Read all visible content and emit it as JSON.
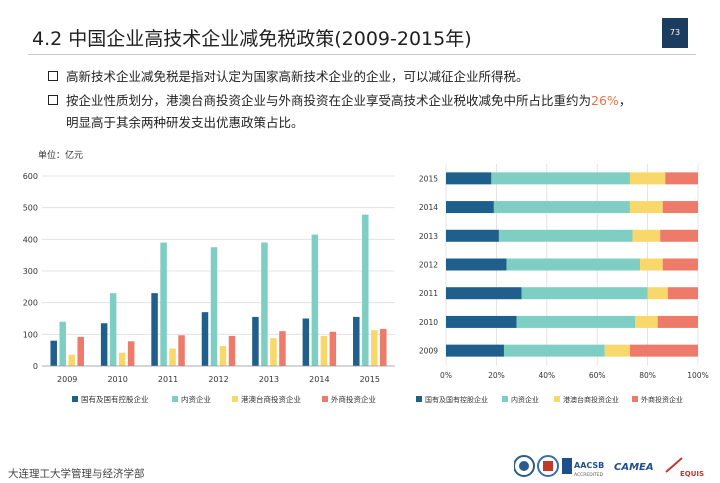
{
  "slide": {
    "title": "4.2  中国企业高技术企业减免税政策(2009-2015年)",
    "page_number": "73",
    "bullets": [
      {
        "text": "高新技术企业减免税是指对认定为国家高新技术企业的企业，可以减征企业所得税。"
      },
      {
        "text_before": "按企业性质划分，港澳台商投资企业与外商投资在企业享受高技术企业税收减免中所占比重约为",
        "highlight": "26%",
        "text_after": "，",
        "line2": "明显高于其余两种研发支出优惠政策占比。"
      }
    ],
    "unit_label": "单位：亿元",
    "footer": "大连理工大学管理与经济学部",
    "logos": [
      "AACSB",
      "CAMEA",
      "EQUIS"
    ],
    "logo_captions": [
      "ACCREDITED"
    ]
  },
  "colors": {
    "s1": "#1f5f8b",
    "s2": "#7ecec4",
    "s3": "#f8d86a",
    "s4": "#ee7a6a",
    "badge": "#1b3c5e",
    "highlight": "#e8734a"
  },
  "chart_data": [
    {
      "type": "bar",
      "title": "",
      "ylabel": "单位：亿元",
      "ylim": [
        0,
        600
      ],
      "yticks": [
        0,
        100,
        200,
        300,
        400,
        500,
        600
      ],
      "categories": [
        "2009",
        "2010",
        "2011",
        "2012",
        "2013",
        "2014",
        "2015"
      ],
      "series": [
        {
          "name": "国有及国有控股企业",
          "values": [
            80,
            135,
            230,
            170,
            155,
            150,
            155
          ]
        },
        {
          "name": "内资企业",
          "values": [
            140,
            230,
            390,
            375,
            390,
            415,
            478
          ]
        },
        {
          "name": "港澳台商投资企业",
          "values": [
            35,
            42,
            55,
            63,
            88,
            95,
            113
          ]
        },
        {
          "name": "外商投资企业",
          "values": [
            92,
            78,
            97,
            95,
            110,
            108,
            117
          ]
        }
      ],
      "legend": "bottom"
    },
    {
      "type": "bar",
      "orientation": "horizontal-stacked-100",
      "title": "",
      "categories": [
        "2015",
        "2014",
        "2013",
        "2012",
        "2011",
        "2010",
        "2009"
      ],
      "xticks": [
        "0%",
        "20%",
        "40%",
        "60%",
        "80%",
        "100%"
      ],
      "series": [
        {
          "name": "国有及国有控股企业",
          "values": [
            18,
            19,
            21,
            24,
            30,
            28,
            23
          ]
        },
        {
          "name": "内资企业",
          "values": [
            55,
            54,
            53,
            53,
            50,
            47,
            40
          ]
        },
        {
          "name": "港澳台商投资企业",
          "values": [
            14,
            13,
            11,
            9,
            8,
            9,
            10
          ]
        },
        {
          "name": "外商投资企业",
          "values": [
            13,
            14,
            15,
            14,
            12,
            16,
            27
          ]
        }
      ],
      "legend": "bottom"
    }
  ]
}
